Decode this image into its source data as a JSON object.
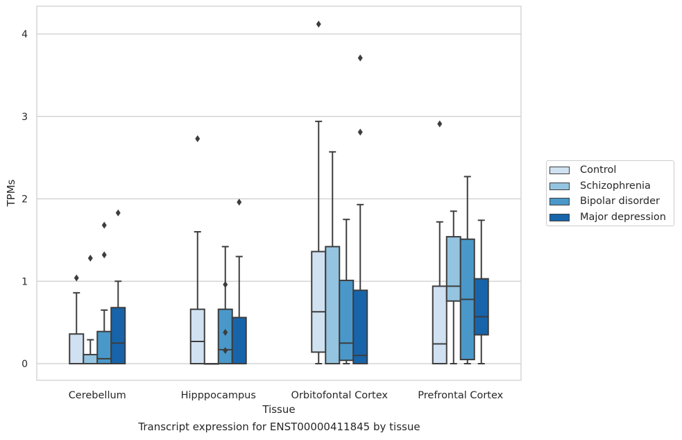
{
  "chart_data": {
    "type": "box",
    "caption": "Transcript expression for ENST00000411845 by tissue",
    "xlabel": "Tissue",
    "ylabel": "TPMs",
    "ylim": [
      -0.2,
      4.32
    ],
    "yticks": [
      0,
      1,
      2,
      3,
      4
    ],
    "categories": [
      "Cerebellum",
      "Hipppocampus",
      "Orbitofontal Cortex",
      "Prefrontal Cortex"
    ],
    "series": [
      {
        "name": "Control",
        "color": "#d0e1f2",
        "boxes": [
          {
            "min": 0,
            "q1": 0,
            "median": 0,
            "q3": 0.36,
            "max": 0.86,
            "outliers": [
              1.04
            ]
          },
          {
            "min": 0,
            "q1": 0,
            "median": 0.27,
            "q3": 0.66,
            "max": 1.6,
            "outliers": [
              2.73
            ]
          },
          {
            "min": 0,
            "q1": 0.14,
            "median": 0.63,
            "q3": 1.36,
            "max": 2.94,
            "outliers": [
              4.12
            ]
          },
          {
            "min": 0,
            "q1": 0,
            "median": 0.24,
            "q3": 0.94,
            "max": 1.72,
            "outliers": [
              2.91
            ]
          }
        ]
      },
      {
        "name": "Schizophrenia",
        "color": "#94c4df",
        "boxes": [
          {
            "min": 0,
            "q1": 0,
            "median": 0,
            "q3": 0.11,
            "max": 0.29,
            "outliers": [
              1.28
            ]
          },
          {
            "min": 0,
            "q1": 0,
            "median": 0,
            "q3": 0,
            "max": 0,
            "outliers": []
          },
          {
            "min": 0,
            "q1": 0,
            "median": 0,
            "q3": 1.42,
            "max": 2.57,
            "outliers": []
          },
          {
            "min": 0,
            "q1": 0.76,
            "median": 0.94,
            "q3": 1.54,
            "max": 1.85,
            "outliers": []
          }
        ]
      },
      {
        "name": "Bipolar disorder",
        "color": "#4a98c9",
        "boxes": [
          {
            "min": 0,
            "q1": 0,
            "median": 0.06,
            "q3": 0.39,
            "max": 0.65,
            "outliers": [
              1.32,
              1.68
            ]
          },
          {
            "min": 0,
            "q1": 0,
            "median": 0.17,
            "q3": 0.66,
            "max": 1.42,
            "outliers": [
              0.16,
              0.38,
              0.96
            ]
          },
          {
            "min": 0,
            "q1": 0.04,
            "median": 0.25,
            "q3": 1.01,
            "max": 1.75,
            "outliers": []
          },
          {
            "min": 0,
            "q1": 0.05,
            "median": 0.78,
            "q3": 1.51,
            "max": 2.27,
            "outliers": []
          }
        ]
      },
      {
        "name": "Major depression",
        "color": "#1764ab",
        "boxes": [
          {
            "min": 0,
            "q1": 0,
            "median": 0.25,
            "q3": 0.68,
            "max": 1.0,
            "outliers": [
              1.83
            ]
          },
          {
            "min": 0,
            "q1": 0,
            "median": 0,
            "q3": 0.56,
            "max": 1.3,
            "outliers": [
              1.96
            ]
          },
          {
            "min": 0,
            "q1": 0,
            "median": 0.1,
            "q3": 0.89,
            "max": 1.93,
            "outliers": [
              2.81,
              3.71
            ]
          },
          {
            "min": 0,
            "q1": 0.35,
            "median": 0.57,
            "q3": 1.03,
            "max": 1.74,
            "outliers": []
          }
        ]
      }
    ],
    "grid": true,
    "legend_position": "right"
  }
}
